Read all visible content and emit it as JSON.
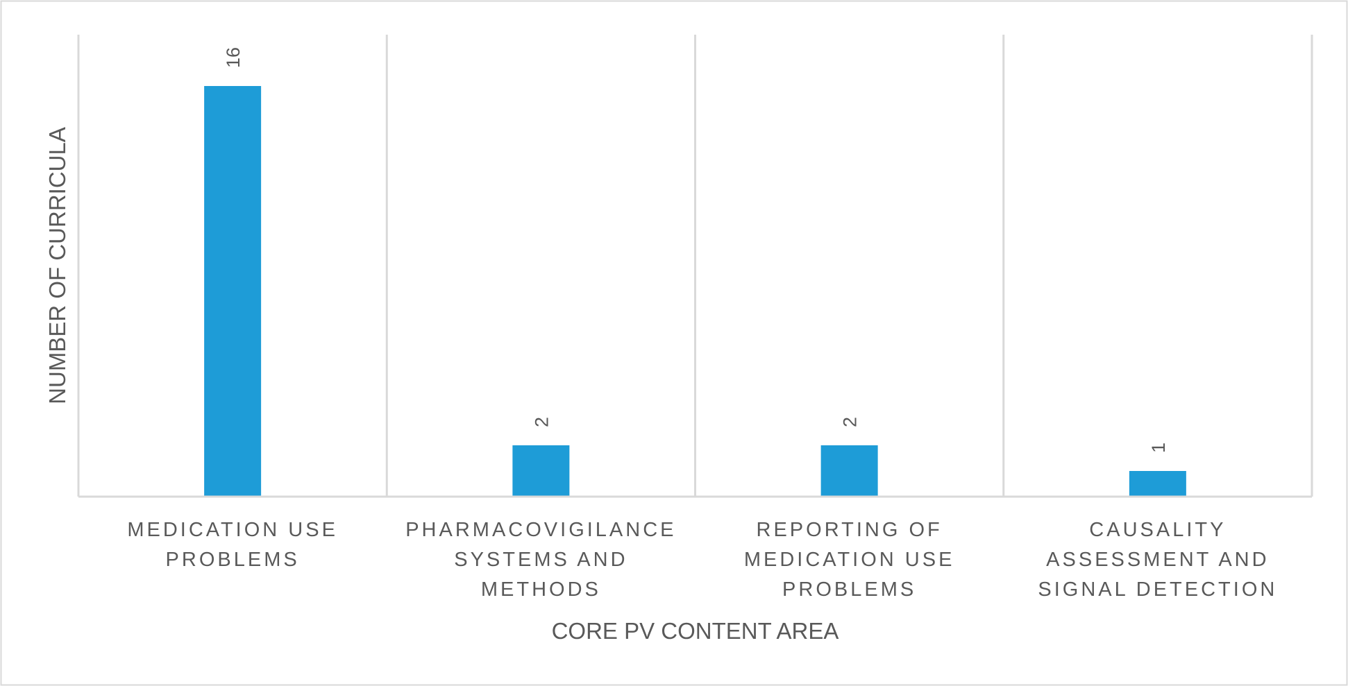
{
  "chart_data": {
    "type": "bar",
    "title": "",
    "xlabel": "CORE PV CONTENT AREA",
    "ylabel": "NUMBER OF CURRICULA",
    "categories": [
      [
        "MEDICATION USE",
        "PROBLEMS"
      ],
      [
        "PHARMACOVIGILANCE",
        "SYSTEMS AND",
        "METHODS"
      ],
      [
        "REPORTING OF",
        "MEDICATION USE",
        "PROBLEMS"
      ],
      [
        "CAUSALITY",
        "ASSESSMENT AND",
        "SIGNAL DETECTION"
      ]
    ],
    "values": [
      16,
      2,
      2,
      1
    ],
    "data_labels": [
      "16",
      "2",
      "2",
      "1"
    ],
    "ylim": [
      0,
      18
    ],
    "grid": "vertical category separators",
    "legend": "none",
    "colors": {
      "bar": "#1e9cd7",
      "grid": "#d9d9d9",
      "text": "#595959",
      "border": "#d9d9d9"
    }
  }
}
